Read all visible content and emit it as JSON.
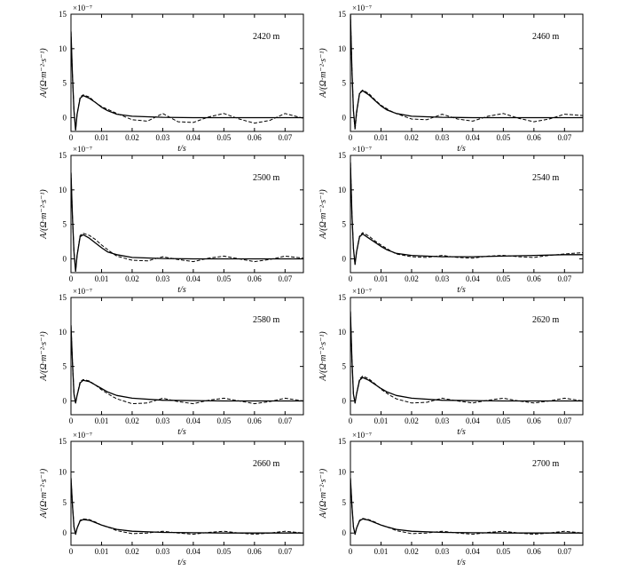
{
  "figure": {
    "x_tick_labels": [
      "0",
      "0.01",
      "0.02",
      "0.03",
      "0.04",
      "0.05",
      "0.06",
      "0.07"
    ],
    "y_tick_labels": [
      "0",
      "5",
      "10",
      "15"
    ],
    "xlabel": "t/s",
    "ylabel": "A/(Ω·m⁻²·s⁻¹)",
    "scale_label": "×10⁻⁷"
  },
  "chart_data": [
    {
      "type": "line",
      "annotation": "2420 m",
      "xlabel": "t/s",
      "ylabel": "A/(Ω·m⁻²·s⁻¹)",
      "scale": "×10⁻⁷",
      "xlim": [
        0,
        0.076
      ],
      "ylim": [
        -2,
        15
      ],
      "series": [
        {
          "style": "solid",
          "x": [
            0,
            0.0005,
            0.001,
            0.0015,
            0.002,
            0.003,
            0.004,
            0.006,
            0.008,
            0.01,
            0.012,
            0.015,
            0.02,
            0.03,
            0.04,
            0.05,
            0.06,
            0.07,
            0.076
          ],
          "y": [
            12.5,
            6.0,
            1.0,
            -1.8,
            0.5,
            2.8,
            3.2,
            2.8,
            2.2,
            1.5,
            1.0,
            0.5,
            0.2,
            0.05,
            0,
            0,
            0,
            0,
            0
          ]
        },
        {
          "style": "dashed",
          "x": [
            0,
            0.0005,
            0.001,
            0.0015,
            0.002,
            0.003,
            0.004,
            0.006,
            0.008,
            0.01,
            0.013,
            0.015,
            0.02,
            0.025,
            0.03,
            0.035,
            0.04,
            0.045,
            0.05,
            0.055,
            0.06,
            0.065,
            0.07,
            0.076
          ],
          "y": [
            12.5,
            6.0,
            1.0,
            -1.8,
            0.5,
            3.0,
            3.3,
            3.0,
            2.2,
            1.6,
            1.0,
            0.6,
            -0.3,
            -0.5,
            0.6,
            -0.6,
            -0.7,
            0.1,
            0.6,
            -0.2,
            -0.8,
            -0.4,
            0.6,
            -0.1
          ]
        }
      ]
    },
    {
      "type": "line",
      "annotation": "2460 m",
      "xlabel": "t/s",
      "ylabel": "A/(Ω·m⁻²·s⁻¹)",
      "scale": "×10⁻⁷",
      "xlim": [
        0,
        0.076
      ],
      "ylim": [
        -2,
        15
      ],
      "series": [
        {
          "style": "solid",
          "x": [
            0,
            0.0005,
            0.001,
            0.0015,
            0.002,
            0.003,
            0.004,
            0.006,
            0.008,
            0.01,
            0.012,
            0.015,
            0.02,
            0.03,
            0.04,
            0.05,
            0.06,
            0.07,
            0.076
          ],
          "y": [
            15,
            7.0,
            1.0,
            -1.5,
            0.8,
            3.5,
            3.9,
            3.3,
            2.5,
            1.7,
            1.1,
            0.6,
            0.2,
            0.05,
            0,
            0,
            0,
            0,
            0
          ]
        },
        {
          "style": "dashed",
          "x": [
            0,
            0.0005,
            0.001,
            0.0015,
            0.002,
            0.003,
            0.004,
            0.006,
            0.008,
            0.01,
            0.013,
            0.015,
            0.02,
            0.025,
            0.03,
            0.035,
            0.04,
            0.045,
            0.05,
            0.055,
            0.06,
            0.065,
            0.07,
            0.076
          ],
          "y": [
            15,
            7.0,
            1.0,
            -1.8,
            0.5,
            3.6,
            4.0,
            3.5,
            2.6,
            1.8,
            1.0,
            0.6,
            -0.2,
            -0.3,
            0.5,
            -0.2,
            -0.5,
            0.2,
            0.6,
            -0.1,
            -0.6,
            -0.2,
            0.5,
            0.3
          ]
        }
      ]
    },
    {
      "type": "line",
      "annotation": "2500 m",
      "xlabel": "t/s",
      "ylabel": "A/(Ω·m⁻²·s⁻¹)",
      "scale": "×10⁻⁷",
      "xlim": [
        0,
        0.076
      ],
      "ylim": [
        -2,
        15
      ],
      "series": [
        {
          "style": "solid",
          "x": [
            0,
            0.0005,
            0.001,
            0.0015,
            0.002,
            0.003,
            0.004,
            0.006,
            0.008,
            0.01,
            0.012,
            0.015,
            0.02,
            0.03,
            0.04,
            0.05,
            0.06,
            0.07,
            0.076
          ],
          "y": [
            12.5,
            6.0,
            1.0,
            -1.8,
            0.5,
            3.2,
            3.5,
            3.0,
            2.3,
            1.6,
            1.0,
            0.6,
            0.2,
            0.05,
            0,
            0,
            0,
            0,
            0
          ]
        },
        {
          "style": "dashed",
          "x": [
            0,
            0.0005,
            0.001,
            0.0015,
            0.002,
            0.003,
            0.004,
            0.006,
            0.008,
            0.01,
            0.013,
            0.015,
            0.02,
            0.025,
            0.03,
            0.035,
            0.04,
            0.045,
            0.05,
            0.055,
            0.06,
            0.065,
            0.07,
            0.076
          ],
          "y": [
            12.5,
            6.0,
            1.0,
            -1.8,
            0.5,
            3.4,
            3.7,
            3.4,
            2.8,
            2.0,
            1.0,
            0.4,
            -0.2,
            -0.3,
            0.3,
            -0.1,
            -0.4,
            0.1,
            0.4,
            0.0,
            -0.4,
            -0.1,
            0.4,
            0.1
          ]
        }
      ]
    },
    {
      "type": "line",
      "annotation": "2540 m",
      "xlabel": "t/s",
      "ylabel": "A/(Ω·m⁻²·s⁻¹)",
      "scale": "×10⁻⁷",
      "xlim": [
        0,
        0.076
      ],
      "ylim": [
        -2,
        15
      ],
      "series": [
        {
          "style": "solid",
          "x": [
            0,
            0.0005,
            0.001,
            0.0015,
            0.002,
            0.003,
            0.004,
            0.006,
            0.008,
            0.01,
            0.012,
            0.015,
            0.02,
            0.03,
            0.04,
            0.05,
            0.06,
            0.07,
            0.076
          ],
          "y": [
            14,
            6.5,
            1.5,
            -0.8,
            1.0,
            3.2,
            3.6,
            3.0,
            2.4,
            1.8,
            1.3,
            0.8,
            0.5,
            0.3,
            0.3,
            0.4,
            0.5,
            0.6,
            0.6
          ]
        },
        {
          "style": "dashed",
          "x": [
            0,
            0.0005,
            0.001,
            0.0015,
            0.002,
            0.003,
            0.004,
            0.006,
            0.008,
            0.01,
            0.013,
            0.015,
            0.02,
            0.025,
            0.03,
            0.035,
            0.04,
            0.045,
            0.05,
            0.055,
            0.06,
            0.065,
            0.07,
            0.076
          ],
          "y": [
            14,
            6.5,
            1.5,
            -0.8,
            1.0,
            3.3,
            3.8,
            3.3,
            2.6,
            2.0,
            1.2,
            0.7,
            0.3,
            0.2,
            0.5,
            0.2,
            0.1,
            0.4,
            0.5,
            0.3,
            0.2,
            0.5,
            0.7,
            0.9
          ]
        }
      ]
    },
    {
      "type": "line",
      "annotation": "2580 m",
      "xlabel": "t/s",
      "ylabel": "A/(Ω·m⁻²·s⁻¹)",
      "scale": "×10⁻⁷",
      "xlim": [
        0,
        0.076
      ],
      "ylim": [
        -2,
        15
      ],
      "series": [
        {
          "style": "solid",
          "x": [
            0,
            0.0005,
            0.001,
            0.0015,
            0.002,
            0.003,
            0.004,
            0.006,
            0.008,
            0.01,
            0.012,
            0.015,
            0.02,
            0.03,
            0.04,
            0.05,
            0.06,
            0.07,
            0.076
          ],
          "y": [
            11,
            5.5,
            1.0,
            -0.3,
            0.8,
            2.6,
            3.0,
            2.8,
            2.3,
            1.8,
            1.3,
            0.8,
            0.4,
            0.1,
            0.05,
            0,
            0,
            0,
            0
          ]
        },
        {
          "style": "dashed",
          "x": [
            0,
            0.0005,
            0.001,
            0.0015,
            0.002,
            0.003,
            0.004,
            0.006,
            0.008,
            0.01,
            0.013,
            0.015,
            0.02,
            0.025,
            0.03,
            0.035,
            0.04,
            0.045,
            0.05,
            0.055,
            0.06,
            0.065,
            0.07,
            0.076
          ],
          "y": [
            11,
            5.5,
            1.0,
            -0.3,
            0.8,
            2.8,
            3.1,
            2.9,
            2.3,
            1.6,
            0.8,
            0.3,
            -0.4,
            -0.3,
            0.4,
            -0.1,
            -0.4,
            0.1,
            0.4,
            0.0,
            -0.4,
            -0.1,
            0.4,
            0.0
          ]
        }
      ]
    },
    {
      "type": "line",
      "annotation": "2620 m",
      "xlabel": "t/s",
      "ylabel": "A/(Ω·m⁻²·s⁻¹)",
      "scale": "×10⁻⁷",
      "xlim": [
        0,
        0.076
      ],
      "ylim": [
        -2,
        15
      ],
      "series": [
        {
          "style": "solid",
          "x": [
            0,
            0.0005,
            0.001,
            0.0015,
            0.002,
            0.003,
            0.004,
            0.006,
            0.008,
            0.01,
            0.012,
            0.015,
            0.02,
            0.03,
            0.04,
            0.05,
            0.06,
            0.07,
            0.076
          ],
          "y": [
            13,
            6.0,
            1.0,
            -0.3,
            1.0,
            3.0,
            3.4,
            3.0,
            2.4,
            1.8,
            1.3,
            0.8,
            0.4,
            0.1,
            0.05,
            0,
            0,
            0,
            0
          ]
        },
        {
          "style": "dashed",
          "x": [
            0,
            0.0005,
            0.001,
            0.0015,
            0.002,
            0.003,
            0.004,
            0.006,
            0.008,
            0.01,
            0.013,
            0.015,
            0.02,
            0.025,
            0.03,
            0.035,
            0.04,
            0.045,
            0.05,
            0.055,
            0.06,
            0.065,
            0.07,
            0.076
          ],
          "y": [
            13,
            6.0,
            1.0,
            -0.3,
            1.0,
            3.2,
            3.6,
            3.2,
            2.5,
            1.7,
            0.8,
            0.3,
            -0.3,
            -0.2,
            0.4,
            0.0,
            -0.3,
            0.1,
            0.4,
            0.0,
            -0.3,
            0.0,
            0.4,
            0.0
          ]
        }
      ]
    },
    {
      "type": "line",
      "annotation": "2660 m",
      "xlabel": "t/s",
      "ylabel": "A/(Ω·m⁻²·s⁻¹)",
      "scale": "×10⁻⁷",
      "xlim": [
        0,
        0.076
      ],
      "ylim": [
        -2,
        15
      ],
      "series": [
        {
          "style": "solid",
          "x": [
            0,
            0.0005,
            0.001,
            0.0015,
            0.002,
            0.003,
            0.004,
            0.006,
            0.008,
            0.01,
            0.012,
            0.015,
            0.02,
            0.03,
            0.04,
            0.05,
            0.06,
            0.07,
            0.076
          ],
          "y": [
            9,
            4.5,
            1.0,
            -0.2,
            0.8,
            2.0,
            2.2,
            2.1,
            1.7,
            1.3,
            1.0,
            0.6,
            0.3,
            0.1,
            0.05,
            0,
            0,
            0,
            0
          ]
        },
        {
          "style": "dashed",
          "x": [
            0,
            0.0005,
            0.001,
            0.0015,
            0.002,
            0.003,
            0.004,
            0.006,
            0.008,
            0.01,
            0.013,
            0.015,
            0.02,
            0.025,
            0.03,
            0.035,
            0.04,
            0.045,
            0.05,
            0.055,
            0.06,
            0.065,
            0.07,
            0.076
          ],
          "y": [
            9,
            4.5,
            1.0,
            -0.2,
            0.8,
            2.1,
            2.3,
            2.2,
            1.8,
            1.3,
            0.8,
            0.4,
            -0.1,
            0.0,
            0.3,
            0.0,
            -0.2,
            0.1,
            0.3,
            0.0,
            -0.2,
            0.0,
            0.3,
            0.0
          ]
        }
      ]
    },
    {
      "type": "line",
      "annotation": "2700 m",
      "xlabel": "t/s",
      "ylabel": "A/(Ω·m⁻²·s⁻¹)",
      "scale": "×10⁻⁷",
      "xlim": [
        0,
        0.076
      ],
      "ylim": [
        -2,
        15
      ],
      "series": [
        {
          "style": "solid",
          "x": [
            0,
            0.0005,
            0.001,
            0.0015,
            0.002,
            0.003,
            0.004,
            0.006,
            0.008,
            0.01,
            0.012,
            0.015,
            0.02,
            0.03,
            0.04,
            0.05,
            0.06,
            0.07,
            0.076
          ],
          "y": [
            9,
            4.5,
            1.0,
            -0.2,
            0.8,
            2.0,
            2.3,
            2.1,
            1.7,
            1.3,
            1.0,
            0.6,
            0.3,
            0.1,
            0.05,
            0,
            0,
            0,
            0
          ]
        },
        {
          "style": "dashed",
          "x": [
            0,
            0.0005,
            0.001,
            0.0015,
            0.002,
            0.003,
            0.004,
            0.006,
            0.008,
            0.01,
            0.013,
            0.015,
            0.02,
            0.025,
            0.03,
            0.035,
            0.04,
            0.045,
            0.05,
            0.055,
            0.06,
            0.065,
            0.07,
            0.076
          ],
          "y": [
            9,
            4.5,
            1.0,
            -0.2,
            0.8,
            2.1,
            2.4,
            2.2,
            1.8,
            1.3,
            0.8,
            0.4,
            -0.1,
            0.0,
            0.3,
            0.0,
            -0.2,
            0.1,
            0.3,
            0.0,
            -0.2,
            0.0,
            0.3,
            0.0
          ]
        }
      ]
    }
  ]
}
